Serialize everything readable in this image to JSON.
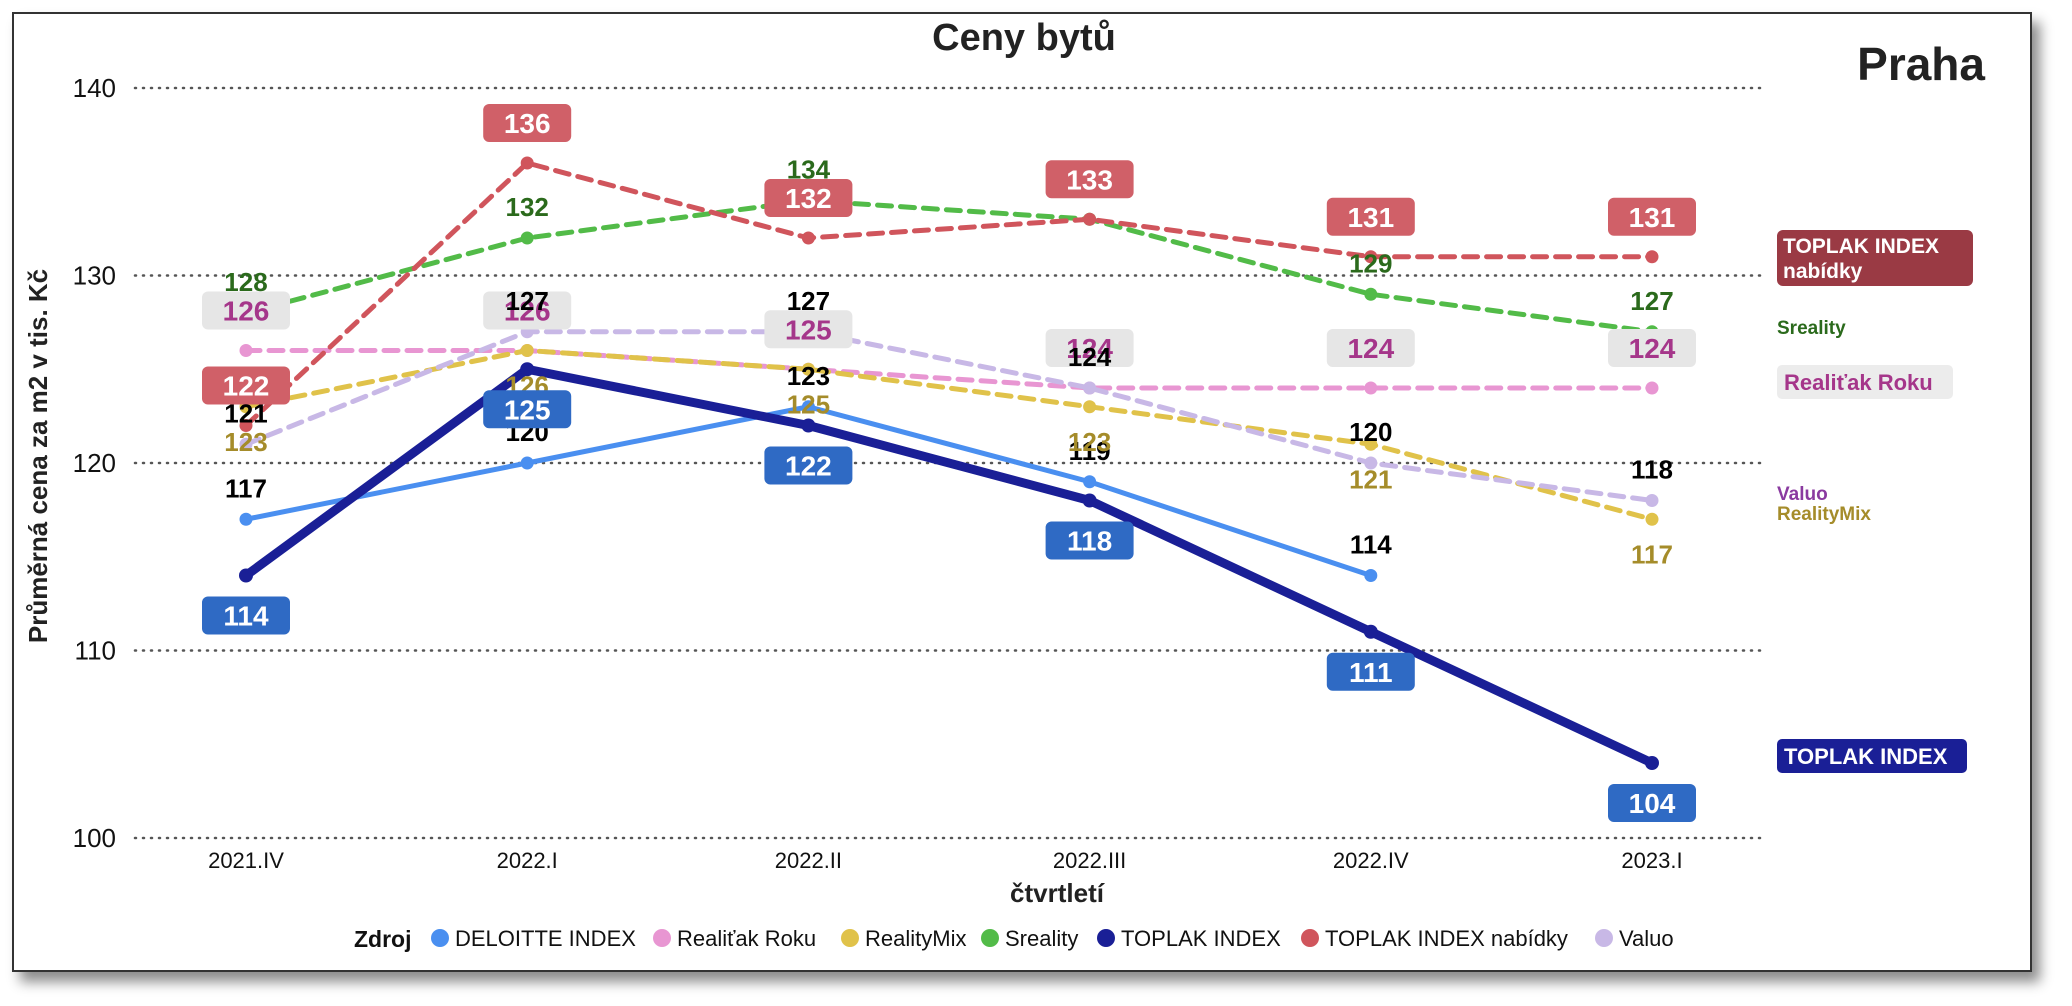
{
  "chart_data": {
    "type": "line",
    "title": "Ceny bytů",
    "subtitle": "Praha",
    "xlabel": "čtvrtletí",
    "ylabel": "Průměrná cena za m2 v tis. Kč",
    "ylim": [
      100,
      140
    ],
    "yticks": [
      100,
      110,
      120,
      130,
      140
    ],
    "grid": "horizontal dotted",
    "categories": [
      "2021.IV",
      "2022.I",
      "2022.II",
      "2022.III",
      "2022.IV",
      "2023.I"
    ],
    "legend": {
      "title": "Zdroj",
      "placement": "bottom",
      "items": [
        "DELOITTE INDEX",
        "Realiťak Roku",
        "RealityMix",
        "Sreality",
        "TOPLAK INDEX",
        "TOPLAK INDEX nabídky",
        "Valuo"
      ]
    },
    "series": [
      {
        "name": "DELOITTE INDEX",
        "values": [
          117,
          120,
          123,
          119,
          114,
          null
        ],
        "color": "#4a8ff0",
        "dashed": false,
        "width": 5,
        "label_style": "plain",
        "label_color": "#000000",
        "label_pos": "above"
      },
      {
        "name": "Realiťak Roku",
        "values": [
          126,
          126,
          125,
          124,
          124,
          124
        ],
        "color": "#e896d2",
        "dashed": true,
        "width": 5,
        "label_style": "box",
        "box_color": "#e6e6e6",
        "label_color": "#a5368a",
        "label_pos": "above"
      },
      {
        "name": "RealityMix",
        "values": [
          123,
          126,
          125,
          123,
          121,
          117
        ],
        "color": "#e0c24a",
        "dashed": true,
        "width": 5,
        "label_style": "plain",
        "label_color": "#a58c2a",
        "label_pos": "below"
      },
      {
        "name": "Sreality",
        "values": [
          128,
          132,
          134,
          133,
          129,
          127
        ],
        "color": "#52bb48",
        "dashed": true,
        "width": 5,
        "label_style": "plain",
        "label_color": "#2b6a1c",
        "label_pos": "above"
      },
      {
        "name": "TOPLAK INDEX",
        "values": [
          114,
          125,
          122,
          118,
          111,
          104
        ],
        "color": "#1a1f96",
        "dashed": false,
        "width": 9,
        "label_style": "box",
        "box_color": "#2f6ac4",
        "label_color": "#ffffff",
        "label_pos": "below"
      },
      {
        "name": "TOPLAK INDEX nabídky",
        "values": [
          122,
          136,
          132,
          133,
          131,
          131
        ],
        "color": "#d0555c",
        "dashed": true,
        "width": 5,
        "label_style": "box",
        "box_color": "#d06068",
        "label_color": "#ffffff",
        "label_pos": "above"
      },
      {
        "name": "Valuo",
        "values": [
          121,
          127,
          127,
          124,
          120,
          118
        ],
        "color": "#c8b8e6",
        "dashed": true,
        "width": 5,
        "label_style": "plain",
        "label_color": "#000000",
        "label_pos": "above"
      }
    ],
    "end_labels": [
      {
        "series": "TOPLAK INDEX nabídky",
        "text": "TOPLAK INDEX nabídky",
        "box_color": "#9a3a44",
        "text_color": "#ffffff"
      },
      {
        "series": "Sreality",
        "text": "Sreality",
        "box_color": null,
        "text_color": "#2b6a1c"
      },
      {
        "series": "Realiťak Roku",
        "text": "Realiťak Roku",
        "box_color": "#ececec",
        "text_color": "#a5368a"
      },
      {
        "series": "Valuo",
        "text": "Valuo",
        "box_color": null,
        "text_color": "#8a3aa0"
      },
      {
        "series": "RealityMix",
        "text": "RealityMix",
        "box_color": null,
        "text_color": "#a58c2a"
      },
      {
        "series": "TOPLAK INDEX",
        "text": "TOPLAK INDEX",
        "box_color": "#1a1f96",
        "text_color": "#ffffff"
      }
    ]
  }
}
